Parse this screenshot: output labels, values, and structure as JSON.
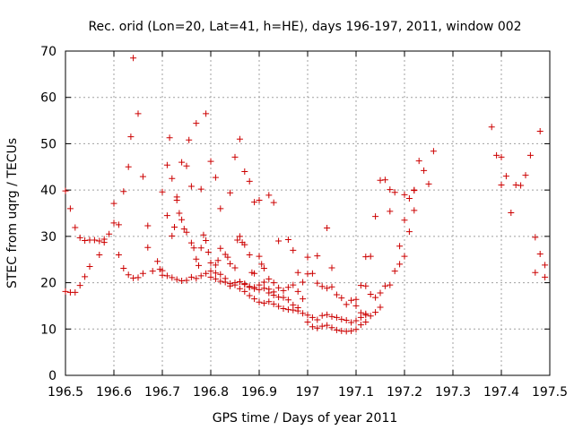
{
  "chart_data": {
    "type": "scatter",
    "title": "Rec. orid (Lon=20, Lat=41, h=HE), days 196-197, 2011, window 002",
    "xlabel": "GPS time / Days of year 2011",
    "ylabel": "STEC from uqrg / TECUs",
    "xlim": [
      196.5,
      197.5
    ],
    "ylim": [
      0,
      70
    ],
    "xticks": [
      "196.5",
      "196.6",
      "196.7",
      "196.8",
      "196.9",
      "197",
      "197.1",
      "197.2",
      "197.3",
      "197.4",
      "197.5"
    ],
    "xtick_values": [
      196.5,
      196.6,
      196.7,
      196.8,
      196.9,
      197.0,
      197.1,
      197.2,
      197.3,
      197.4,
      197.5
    ],
    "yticks": [
      "0",
      "10",
      "20",
      "30",
      "40",
      "50",
      "60",
      "70"
    ],
    "ytick_values": [
      0,
      10,
      20,
      30,
      40,
      50,
      60,
      70
    ],
    "grid": true,
    "marker": "+",
    "marker_color": "#cc0000",
    "points": [
      [
        196.5,
        39.8
      ],
      [
        196.51,
        36.0
      ],
      [
        196.52,
        31.9
      ],
      [
        196.53,
        29.7
      ],
      [
        196.54,
        29.1
      ],
      [
        196.55,
        29.2
      ],
      [
        196.56,
        29.2
      ],
      [
        196.57,
        26.0
      ],
      [
        196.58,
        28.7
      ],
      [
        196.6,
        37.1
      ],
      [
        196.61,
        32.5
      ],
      [
        196.62,
        39.7
      ],
      [
        196.63,
        45.0
      ],
      [
        196.635,
        51.5
      ],
      [
        196.64,
        68.5
      ],
      [
        196.65,
        56.5
      ],
      [
        196.66,
        42.9
      ],
      [
        196.67,
        32.3
      ],
      [
        196.7,
        39.6
      ],
      [
        196.71,
        45.4
      ],
      [
        196.715,
        51.3
      ],
      [
        196.72,
        42.5
      ],
      [
        196.73,
        38.5
      ],
      [
        196.74,
        46.0
      ],
      [
        196.75,
        45.2
      ],
      [
        196.755,
        50.8
      ],
      [
        196.76,
        40.8
      ],
      [
        196.77,
        54.4
      ],
      [
        196.78,
        40.2
      ],
      [
        196.79,
        56.5
      ],
      [
        196.8,
        46.2
      ],
      [
        196.81,
        42.7
      ],
      [
        196.82,
        36.0
      ],
      [
        196.84,
        39.4
      ],
      [
        196.85,
        47.1
      ],
      [
        196.86,
        51.0
      ],
      [
        196.87,
        44.0
      ],
      [
        196.88,
        41.9
      ],
      [
        196.89,
        37.4
      ],
      [
        196.9,
        37.8
      ],
      [
        196.92,
        38.9
      ],
      [
        196.93,
        37.3
      ],
      [
        196.5,
        18.1
      ],
      [
        196.51,
        17.9
      ],
      [
        196.52,
        17.9
      ],
      [
        196.53,
        19.4
      ],
      [
        196.54,
        21.3
      ],
      [
        196.55,
        23.5
      ],
      [
        196.57,
        29.0
      ],
      [
        196.58,
        29.4
      ],
      [
        196.59,
        30.5
      ],
      [
        196.6,
        32.9
      ],
      [
        196.61,
        26.0
      ],
      [
        196.62,
        23.1
      ],
      [
        196.63,
        21.7
      ],
      [
        196.64,
        21.0
      ],
      [
        196.65,
        21.1
      ],
      [
        196.66,
        22.0
      ],
      [
        196.67,
        27.6
      ],
      [
        196.68,
        22.5
      ],
      [
        196.69,
        24.6
      ],
      [
        196.695,
        22.9
      ],
      [
        196.7,
        21.6
      ],
      [
        196.71,
        34.5
      ],
      [
        196.72,
        30.1
      ],
      [
        196.725,
        32.0
      ],
      [
        196.73,
        37.8
      ],
      [
        196.735,
        35.0
      ],
      [
        196.74,
        33.6
      ],
      [
        196.745,
        31.6
      ],
      [
        196.75,
        30.9
      ],
      [
        196.76,
        28.6
      ],
      [
        196.765,
        27.5
      ],
      [
        196.77,
        25.1
      ],
      [
        196.775,
        23.7
      ],
      [
        196.78,
        27.5
      ],
      [
        196.785,
        30.3
      ],
      [
        196.79,
        29.1
      ],
      [
        196.795,
        26.6
      ],
      [
        196.8,
        24.3
      ],
      [
        196.81,
        23.8
      ],
      [
        196.815,
        24.8
      ],
      [
        196.82,
        27.4
      ],
      [
        196.83,
        26.1
      ],
      [
        196.835,
        25.5
      ],
      [
        196.84,
        24.1
      ],
      [
        196.85,
        23.2
      ],
      [
        196.855,
        29.2
      ],
      [
        196.86,
        30.0
      ],
      [
        196.865,
        28.7
      ],
      [
        196.87,
        28.2
      ],
      [
        196.88,
        26.0
      ],
      [
        196.885,
        22.2
      ],
      [
        196.89,
        22.0
      ],
      [
        196.9,
        25.7
      ],
      [
        196.905,
        24.0
      ],
      [
        196.91,
        23.1
      ],
      [
        196.92,
        20.8
      ],
      [
        196.93,
        20.0
      ],
      [
        196.94,
        29.0
      ],
      [
        196.96,
        29.3
      ],
      [
        196.97,
        27.0
      ],
      [
        196.98,
        22.2
      ],
      [
        196.99,
        20.1
      ],
      [
        196.7,
        22.6
      ],
      [
        196.71,
        21.5
      ],
      [
        196.72,
        21.1
      ],
      [
        196.73,
        20.7
      ],
      [
        196.74,
        20.4
      ],
      [
        196.75,
        20.5
      ],
      [
        196.76,
        21.2
      ],
      [
        196.77,
        20.9
      ],
      [
        196.78,
        21.5
      ],
      [
        196.79,
        22.0
      ],
      [
        196.8,
        21.2
      ],
      [
        196.81,
        20.8
      ],
      [
        196.82,
        20.3
      ],
      [
        196.83,
        20.1
      ],
      [
        196.84,
        19.8
      ],
      [
        196.85,
        19.5
      ],
      [
        196.86,
        20.2
      ],
      [
        196.87,
        19.6
      ],
      [
        196.88,
        19.0
      ],
      [
        196.89,
        18.7
      ],
      [
        196.9,
        18.5
      ],
      [
        196.91,
        18.8
      ],
      [
        196.92,
        18.6
      ],
      [
        196.93,
        18.0
      ],
      [
        196.94,
        18.9
      ],
      [
        196.95,
        18.3
      ],
      [
        196.96,
        19.0
      ],
      [
        196.97,
        19.5
      ],
      [
        196.98,
        18.1
      ],
      [
        196.99,
        16.5
      ],
      [
        196.8,
        22.5
      ],
      [
        196.81,
        22.1
      ],
      [
        196.82,
        21.8
      ],
      [
        196.83,
        20.9
      ],
      [
        196.84,
        19.3
      ],
      [
        196.85,
        20.0
      ],
      [
        196.86,
        18.7
      ],
      [
        196.87,
        18.1
      ],
      [
        196.88,
        17.2
      ],
      [
        196.89,
        16.5
      ],
      [
        196.9,
        15.8
      ],
      [
        196.91,
        15.6
      ],
      [
        196.92,
        15.9
      ],
      [
        196.93,
        15.4
      ],
      [
        196.94,
        14.9
      ],
      [
        196.95,
        14.4
      ],
      [
        196.96,
        14.2
      ],
      [
        196.97,
        14.1
      ],
      [
        196.98,
        13.9
      ],
      [
        196.99,
        13.4
      ],
      [
        196.86,
        20.2
      ],
      [
        196.87,
        19.8
      ],
      [
        196.88,
        19.2
      ],
      [
        196.89,
        19.0
      ],
      [
        196.9,
        19.5
      ],
      [
        196.91,
        20.1
      ],
      [
        196.92,
        17.8
      ],
      [
        196.93,
        17.3
      ],
      [
        196.94,
        16.9
      ],
      [
        196.95,
        16.8
      ],
      [
        196.96,
        16.3
      ],
      [
        196.97,
        15.2
      ],
      [
        196.98,
        14.6
      ],
      [
        197.0,
        21.9
      ],
      [
        197.01,
        22.0
      ],
      [
        197.02,
        19.9
      ],
      [
        197.03,
        19.2
      ],
      [
        197.04,
        18.8
      ],
      [
        197.05,
        19.1
      ],
      [
        197.06,
        17.4
      ],
      [
        197.07,
        16.7
      ],
      [
        197.08,
        15.3
      ],
      [
        197.09,
        16.2
      ],
      [
        197.1,
        15.0
      ],
      [
        197.11,
        13.5
      ],
      [
        197.12,
        13.3
      ],
      [
        197.13,
        12.8
      ],
      [
        197.14,
        13.6
      ],
      [
        197.15,
        14.7
      ],
      [
        197.0,
        25.5
      ],
      [
        197.02,
        25.8
      ],
      [
        197.04,
        31.8
      ],
      [
        197.05,
        23.2
      ],
      [
        197.0,
        13.0
      ],
      [
        197.01,
        12.5
      ],
      [
        197.02,
        12.0
      ],
      [
        197.03,
        12.9
      ],
      [
        197.04,
        13.1
      ],
      [
        197.05,
        12.7
      ],
      [
        197.06,
        12.5
      ],
      [
        197.07,
        12.1
      ],
      [
        197.08,
        11.9
      ],
      [
        197.09,
        11.4
      ],
      [
        197.1,
        11.8
      ],
      [
        197.11,
        12.5
      ],
      [
        197.12,
        13.0
      ],
      [
        197.0,
        11.5
      ],
      [
        197.01,
        10.5
      ],
      [
        197.02,
        10.2
      ],
      [
        197.03,
        10.6
      ],
      [
        197.04,
        10.8
      ],
      [
        197.05,
        10.3
      ],
      [
        197.06,
        9.8
      ],
      [
        197.07,
        9.6
      ],
      [
        197.08,
        9.5
      ],
      [
        197.09,
        9.6
      ],
      [
        197.1,
        9.9
      ],
      [
        197.11,
        10.9
      ],
      [
        197.12,
        11.5
      ],
      [
        197.13,
        17.5
      ],
      [
        197.14,
        16.8
      ],
      [
        197.15,
        17.8
      ],
      [
        197.16,
        19.3
      ],
      [
        197.17,
        19.5
      ],
      [
        197.18,
        22.5
      ],
      [
        197.19,
        24.0
      ],
      [
        197.2,
        25.7
      ],
      [
        197.21,
        31.0
      ],
      [
        197.22,
        35.6
      ],
      [
        197.1,
        16.4
      ],
      [
        197.11,
        19.4
      ],
      [
        197.12,
        19.3
      ],
      [
        197.12,
        25.6
      ],
      [
        197.13,
        25.7
      ],
      [
        197.14,
        34.3
      ],
      [
        197.15,
        42.1
      ],
      [
        197.16,
        42.2
      ],
      [
        197.17,
        40.1
      ],
      [
        197.18,
        39.5
      ],
      [
        197.19,
        27.9
      ],
      [
        197.2,
        33.5
      ],
      [
        197.21,
        38.2
      ],
      [
        197.22,
        40.0
      ],
      [
        197.23,
        46.3
      ],
      [
        197.24,
        44.2
      ],
      [
        197.25,
        41.3
      ],
      [
        197.26,
        48.4
      ],
      [
        197.17,
        35.4
      ],
      [
        197.2,
        39.0
      ],
      [
        197.22,
        39.9
      ],
      [
        197.38,
        53.6
      ],
      [
        197.39,
        47.5
      ],
      [
        197.4,
        47.1
      ],
      [
        197.4,
        41.1
      ],
      [
        197.41,
        43.0
      ],
      [
        197.42,
        35.1
      ],
      [
        197.43,
        41.1
      ],
      [
        197.44,
        41.0
      ],
      [
        197.45,
        43.2
      ],
      [
        197.46,
        47.5
      ],
      [
        197.47,
        29.8
      ],
      [
        197.48,
        26.2
      ],
      [
        197.49,
        23.8
      ],
      [
        197.48,
        52.7
      ],
      [
        197.47,
        22.2
      ],
      [
        197.49,
        21.2
      ]
    ]
  }
}
